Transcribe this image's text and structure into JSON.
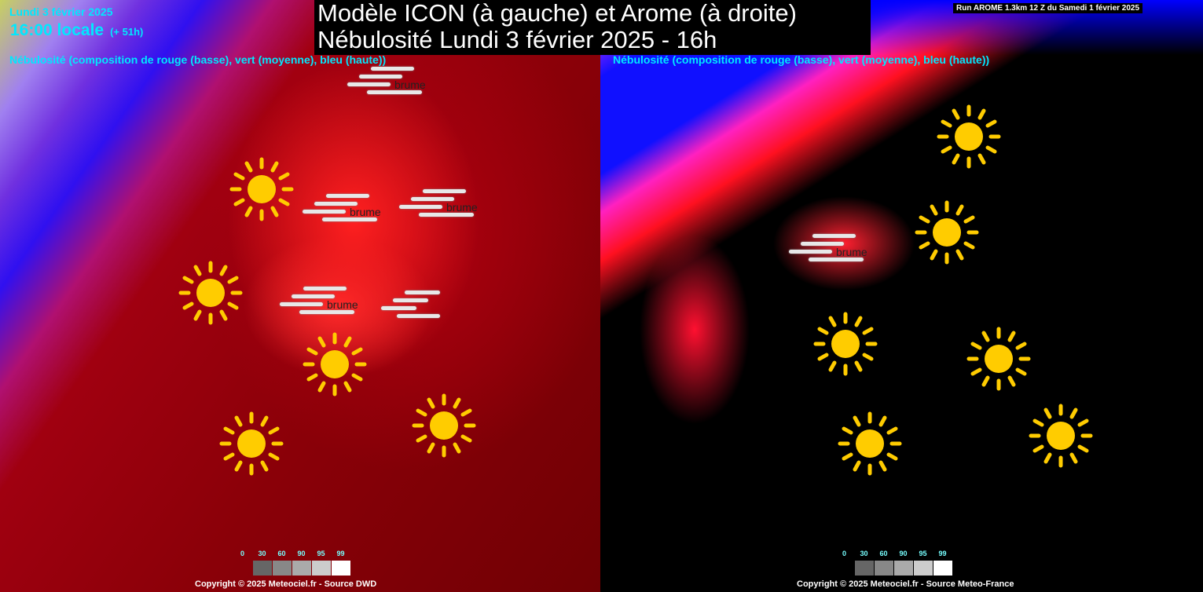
{
  "header": {
    "date": "Lundi 3 février 2025",
    "time": "16:00 locale",
    "offset": "(+ 51h)",
    "title_line1": "Modèle ICON (à gauche) et Arome (à droite)",
    "title_line2": "Nébulosité Lundi 3 février 2025 - 16h",
    "run_info": "Run AROME 1.3km 12 Z du Samedi 1 février 2025"
  },
  "left_panel": {
    "legend": "Nébulosité (composition de rouge (basse), vert (moyenne), bleu (haute))",
    "copyright": "Copyright © 2025 Meteociel.fr - Source DWD",
    "symbols": [
      "sun",
      "sun",
      "sun",
      "sun",
      "sun",
      "brume",
      "brume",
      "brume",
      "brume",
      "mist"
    ]
  },
  "right_panel": {
    "legend": "Nébulosité (composition de rouge (basse), vert (moyenne), bleu (haute))",
    "copyright": "Copyright © 2025 Meteociel.fr - Source Meteo-France",
    "symbols": [
      "sun",
      "sun",
      "sun",
      "sun",
      "sun",
      "sun",
      "brume"
    ]
  },
  "symbol_label_brume": "brume",
  "scale": {
    "labels": [
      "0",
      "30",
      "60",
      "90",
      "95",
      "99"
    ],
    "colors": [
      "#666666",
      "#888888",
      "#aaaaaa",
      "#cccccc",
      "#ffffff"
    ]
  },
  "colors": {
    "low_cloud": "#ff0000",
    "mid_cloud": "#00ff00",
    "high_cloud": "#0000ff",
    "sun": "#ffcc00",
    "text_accent": "#00e8ff"
  }
}
